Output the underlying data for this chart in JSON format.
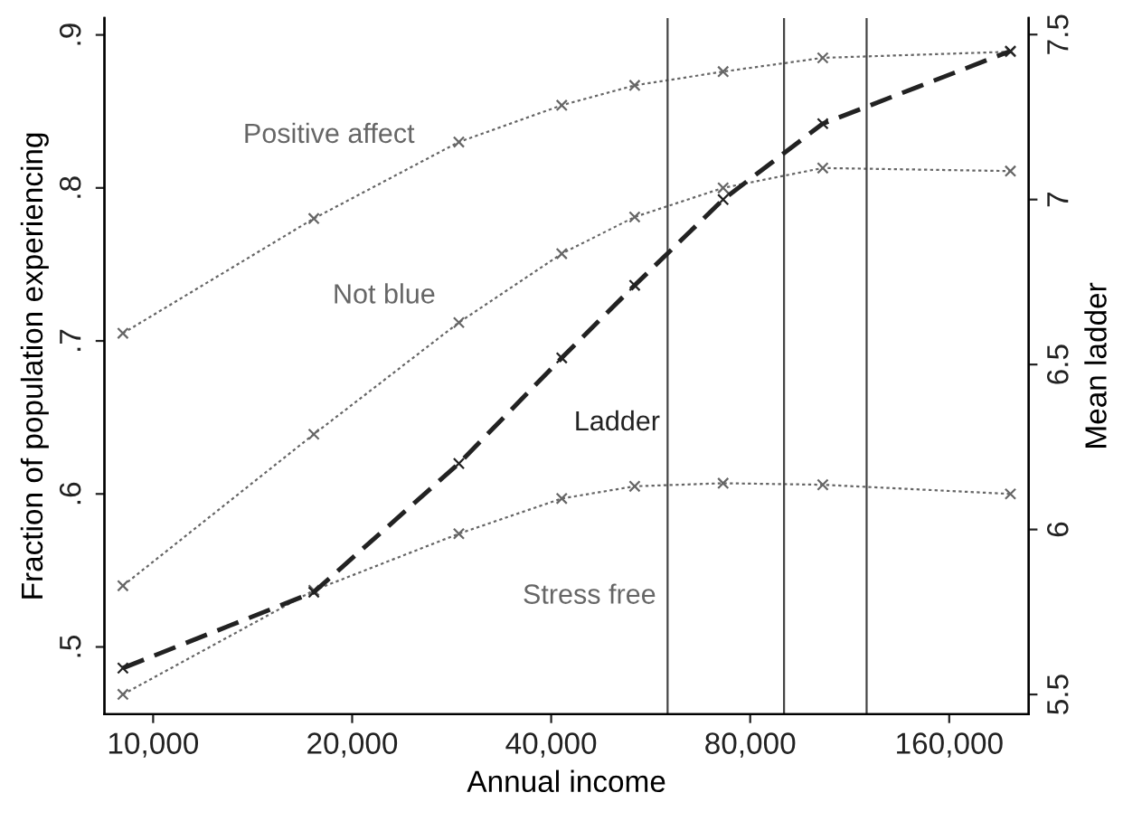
{
  "chart_data": {
    "type": "line",
    "xlabel": "Annual income",
    "ylabel": "Fraction of population experiencing",
    "y2label": "Mean ladder",
    "log": "x",
    "grid": false,
    "x": [
      9000,
      17500,
      29000,
      41500,
      53500,
      72800,
      103000,
      198000
    ],
    "xlim": [
      8440,
      211000
    ],
    "xticks": [
      {
        "value": 10000,
        "label": "10,000"
      },
      {
        "value": 20000,
        "label": "20,000"
      },
      {
        "value": 40000,
        "label": "40,000"
      },
      {
        "value": 80000,
        "label": "80,000"
      },
      {
        "value": 160000,
        "label": "160,000"
      }
    ],
    "ylim": [
      0.456,
      0.911
    ],
    "yticks": [
      {
        "value": 0.5,
        "label": ".5"
      },
      {
        "value": 0.6,
        "label": ".6"
      },
      {
        "value": 0.7,
        "label": ".7"
      },
      {
        "value": 0.8,
        "label": ".8"
      },
      {
        "value": 0.9,
        "label": ".9"
      }
    ],
    "y2lim": [
      5.44,
      7.55
    ],
    "y2ticks": [
      {
        "value": 5.5,
        "label": "5.5"
      },
      6,
      {
        "value": 6.5,
        "label": "6.5"
      },
      7,
      {
        "value": 7.5,
        "label": "7.5"
      }
    ],
    "series": [
      {
        "name": "Positive affect",
        "color": "#666666",
        "line_style": "dotted",
        "marker": "cross",
        "values": [
          0.705,
          0.78,
          0.83,
          0.854,
          0.867,
          0.876,
          0.885,
          0.889
        ]
      },
      {
        "name": "Not blue",
        "color": "#666666",
        "line_style": "dotted",
        "marker": "cross",
        "values": [
          0.54,
          0.639,
          0.712,
          0.757,
          0.781,
          0.8,
          0.813,
          0.811
        ]
      },
      {
        "name": "Stress free",
        "color": "#666666",
        "line_style": "dotted",
        "marker": "cross",
        "values": [
          0.469,
          0.537,
          0.574,
          0.597,
          0.605,
          0.607,
          0.606,
          0.6
        ]
      },
      {
        "name": "Ladder",
        "color": "#222222",
        "line_style": "dashed",
        "marker": "cross",
        "axis": "y2",
        "values": [
          5.58,
          5.81,
          6.2,
          6.52,
          6.74,
          7.0,
          7.23,
          7.45
        ]
      }
    ],
    "ref_lines": [
      {
        "axis": "x",
        "value": 60000,
        "color": "#444444"
      },
      {
        "axis": "x",
        "value": 90000,
        "color": "#444444"
      },
      {
        "axis": "x",
        "value": 120000,
        "color": "#444444"
      }
    ]
  }
}
